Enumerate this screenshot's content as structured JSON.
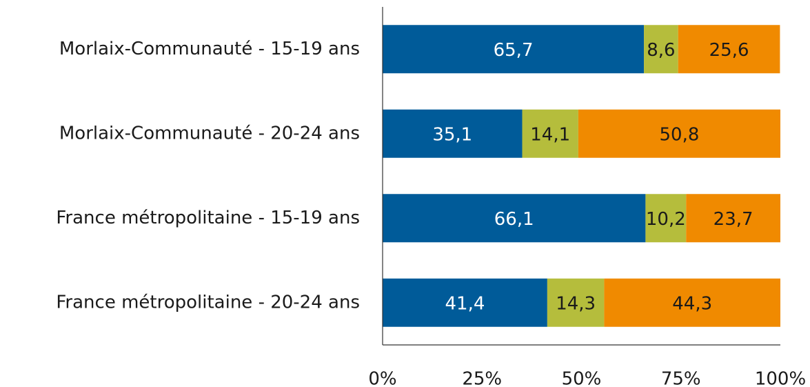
{
  "chart_data": {
    "type": "stacked_barh",
    "categories": [
      "Morlaix-Communauté - 15-19 ans",
      "Morlaix-Communauté - 20-24 ans",
      "France métropolitaine - 15-19 ans",
      "France métropolitaine - 20-24 ans"
    ],
    "series": [
      {
        "color": "#005b99",
        "values": [
          65.7,
          35.1,
          66.1,
          41.4
        ],
        "value_labels": [
          "65,7",
          "35,1",
          "66,1",
          "41,4"
        ]
      },
      {
        "color": "#b5bd3c",
        "values": [
          8.6,
          14.1,
          10.2,
          14.3
        ],
        "value_labels": [
          "8,6",
          "14,1",
          "10,2",
          "14,3"
        ]
      },
      {
        "color": "#f08a00",
        "values": [
          25.6,
          50.8,
          23.7,
          44.3
        ],
        "value_labels": [
          "25,6",
          "50,8",
          "23,7",
          "44,3"
        ]
      }
    ],
    "xlim": [
      0,
      100
    ],
    "xticks": [
      {
        "value": 0,
        "label": "0%"
      },
      {
        "value": 25,
        "label": "25%"
      },
      {
        "value": 50,
        "label": "50%"
      },
      {
        "value": 75,
        "label": "75%"
      },
      {
        "value": 100,
        "label": "100%"
      }
    ]
  }
}
